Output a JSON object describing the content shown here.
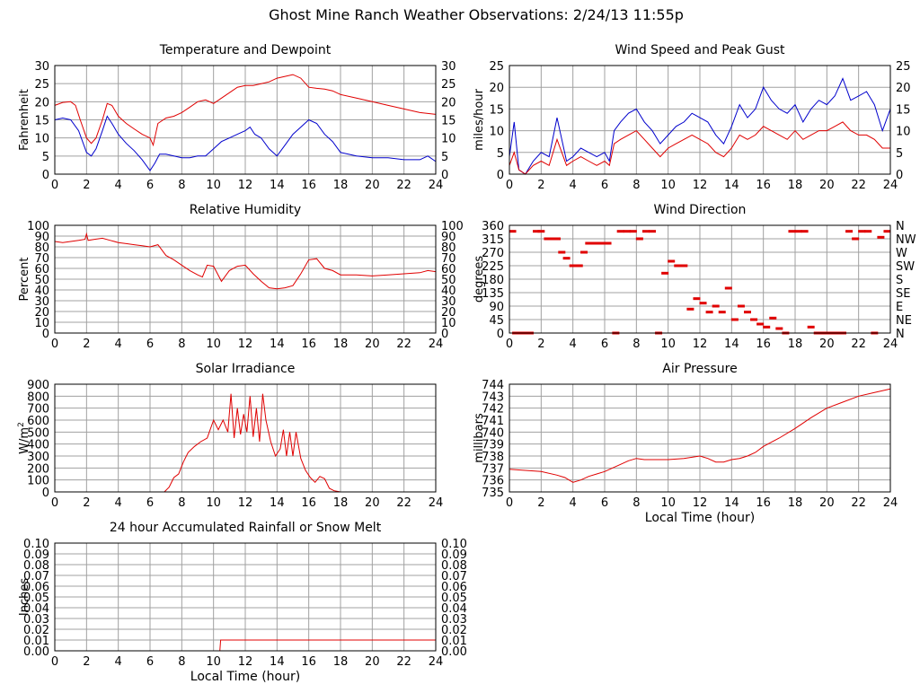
{
  "page": {
    "title": "Ghost Mine Ranch Weather Observations: 2/24/13 11:55p"
  },
  "colors": {
    "grid": "#a0a0a0",
    "frame": "#000000",
    "red": "#e00000",
    "blue": "#0000cc",
    "background": "#ffffff"
  },
  "chart_data": [
    {
      "id": "temperature",
      "type": "line",
      "title": "Temperature and Dewpoint",
      "ylabel": "Fahrenheit",
      "right_axis": true,
      "xlim": [
        0,
        24
      ],
      "ylim": [
        0,
        30
      ],
      "x_ticks": [
        0,
        2,
        4,
        6,
        8,
        10,
        12,
        14,
        16,
        18,
        20,
        22,
        24
      ],
      "y_ticks": [
        0,
        5,
        10,
        15,
        20,
        25,
        30
      ],
      "series": [
        {
          "color": "red",
          "x": [
            0,
            0.5,
            1,
            1.3,
            1.6,
            2,
            2.3,
            2.6,
            3,
            3.3,
            3.6,
            4,
            4.5,
            5,
            5.5,
            6,
            6.2,
            6.5,
            7,
            7.5,
            8,
            8.5,
            9,
            9.5,
            10,
            10.5,
            11,
            11.5,
            12,
            12.5,
            13,
            13.5,
            14,
            14.5,
            15,
            15.5,
            16,
            16.5,
            17,
            17.5,
            18,
            19,
            20,
            21,
            22,
            23,
            24
          ],
          "y": [
            19,
            19.8,
            20,
            19,
            15,
            10,
            8.5,
            10,
            15,
            19.5,
            19,
            16,
            14,
            12.5,
            11,
            10,
            8,
            14,
            15.5,
            16,
            17,
            18.5,
            20,
            20.5,
            19.5,
            21,
            22.5,
            24,
            24.5,
            24.5,
            25,
            25.5,
            26.5,
            27,
            27.5,
            26.5,
            24,
            23.7,
            23.5,
            23,
            22,
            21,
            20,
            19,
            18,
            17,
            16.5
          ]
        },
        {
          "color": "blue",
          "x": [
            0,
            0.5,
            1,
            1.5,
            2,
            2.3,
            2.6,
            3,
            3.3,
            3.6,
            4,
            4.5,
            5,
            5.5,
            6,
            6.3,
            6.6,
            7,
            7.5,
            8,
            8.5,
            9,
            9.5,
            10,
            10.5,
            11,
            11.5,
            12,
            12.3,
            12.6,
            13,
            13.5,
            14,
            14.5,
            15,
            15.5,
            16,
            16.5,
            17,
            17.5,
            18,
            18.5,
            19,
            20,
            21,
            22,
            23,
            23.5,
            24
          ],
          "y": [
            15,
            15.5,
            15,
            12,
            6,
            5,
            7,
            12,
            16,
            14,
            11,
            8.5,
            6.5,
            4,
            1,
            3,
            5.5,
            5.5,
            5,
            4.5,
            4.5,
            5,
            5,
            7,
            9,
            10,
            11,
            12,
            13,
            11,
            10,
            7,
            5,
            8,
            11,
            13,
            15,
            14,
            11,
            9,
            6,
            5.5,
            5,
            4.5,
            4.5,
            4,
            4,
            5,
            3.5
          ]
        }
      ]
    },
    {
      "id": "wind_speed",
      "type": "line",
      "title": "Wind Speed and Peak Gust",
      "ylabel": "miles/hour",
      "right_axis": true,
      "xlim": [
        0,
        24
      ],
      "ylim": [
        0,
        25
      ],
      "x_ticks": [
        0,
        2,
        4,
        6,
        8,
        10,
        12,
        14,
        16,
        18,
        20,
        22,
        24
      ],
      "y_ticks": [
        0,
        5,
        10,
        15,
        20,
        25
      ],
      "series": [
        {
          "color": "blue",
          "x": [
            0,
            0.3,
            0.6,
            1,
            1.5,
            2,
            2.5,
            3,
            3.3,
            3.6,
            4,
            4.5,
            5,
            5.5,
            6,
            6.3,
            6.6,
            7,
            7.5,
            8,
            8.5,
            9,
            9.5,
            10,
            10.5,
            11,
            11.5,
            12,
            12.5,
            13,
            13.5,
            14,
            14.5,
            15,
            15.5,
            16,
            16.5,
            17,
            17.5,
            18,
            18.5,
            19,
            19.5,
            20,
            20.5,
            21,
            21.5,
            22,
            22.5,
            23,
            23.5,
            24
          ],
          "y": [
            4,
            12,
            1,
            0,
            3,
            5,
            4,
            13,
            8,
            3,
            4,
            6,
            5,
            4,
            5,
            3,
            10,
            12,
            14,
            15,
            12,
            10,
            7,
            9,
            11,
            12,
            14,
            13,
            12,
            9,
            7,
            11,
            16,
            13,
            15,
            20,
            17,
            15,
            14,
            16,
            12,
            15,
            17,
            16,
            18,
            22,
            17,
            18,
            19,
            16,
            10,
            15
          ]
        },
        {
          "color": "red",
          "x": [
            0,
            0.3,
            0.6,
            1,
            1.5,
            2,
            2.5,
            3,
            3.3,
            3.6,
            4,
            4.5,
            5,
            5.5,
            6,
            6.3,
            6.6,
            7,
            7.5,
            8,
            8.5,
            9,
            9.5,
            10,
            10.5,
            11,
            11.5,
            12,
            12.5,
            13,
            13.5,
            14,
            14.5,
            15,
            15.5,
            16,
            16.5,
            17,
            17.5,
            18,
            18.5,
            19,
            19.5,
            20,
            20.5,
            21,
            21.5,
            22,
            22.5,
            23,
            23.5,
            24
          ],
          "y": [
            2,
            5,
            1,
            0,
            2,
            3,
            2,
            8,
            5,
            2,
            3,
            4,
            3,
            2,
            3,
            2,
            7,
            8,
            9,
            10,
            8,
            6,
            4,
            6,
            7,
            8,
            9,
            8,
            7,
            5,
            4,
            6,
            9,
            8,
            9,
            11,
            10,
            9,
            8,
            10,
            8,
            9,
            10,
            10,
            11,
            12,
            10,
            9,
            9,
            8,
            6,
            6
          ]
        }
      ]
    },
    {
      "id": "humidity",
      "type": "line",
      "title": "Relative Humidity",
      "ylabel": "Percent",
      "right_axis": true,
      "xlim": [
        0,
        24
      ],
      "ylim": [
        0,
        100
      ],
      "x_ticks": [
        0,
        2,
        4,
        6,
        8,
        10,
        12,
        14,
        16,
        18,
        20,
        22,
        24
      ],
      "y_ticks": [
        0,
        10,
        20,
        30,
        40,
        50,
        60,
        70,
        80,
        90,
        100
      ],
      "series": [
        {
          "color": "red",
          "x": [
            0,
            0.5,
            1,
            1.5,
            1.9,
            2,
            2.1,
            2.5,
            3,
            3.5,
            4,
            4.5,
            5,
            5.5,
            6,
            6.5,
            7,
            7.5,
            8,
            8.5,
            9,
            9.3,
            9.6,
            10,
            10.5,
            11,
            11.5,
            12,
            12.5,
            13,
            13.5,
            14,
            14.5,
            15,
            15.5,
            16,
            16.5,
            17,
            17.5,
            18,
            19,
            20,
            21,
            22,
            23,
            23.5,
            24
          ],
          "y": [
            85,
            84,
            85,
            86,
            87,
            92,
            86,
            87,
            88,
            86,
            84,
            83,
            82,
            81,
            80,
            82,
            72,
            68,
            63,
            58,
            54,
            52,
            63,
            62,
            48,
            58,
            62,
            63,
            55,
            48,
            42,
            41,
            42,
            44,
            55,
            68,
            69,
            60,
            58,
            54,
            54,
            53,
            54,
            55,
            56,
            58,
            57
          ]
        }
      ]
    },
    {
      "id": "wind_direction",
      "type": "scatter",
      "title": "Wind Direction",
      "ylabel": "degrees",
      "right_axis": false,
      "xlim": [
        0,
        24
      ],
      "ylim": [
        0,
        360
      ],
      "x_ticks": [
        0,
        2,
        4,
        6,
        8,
        10,
        12,
        14,
        16,
        18,
        20,
        22,
        24
      ],
      "y_ticks": [
        0,
        45,
        90,
        135,
        180,
        225,
        270,
        315,
        360
      ],
      "right_tick_labels": [
        "N",
        "NE",
        "E",
        "SE",
        "S",
        "SW",
        "W",
        "NW",
        "N"
      ],
      "series": [
        {
          "color": "red",
          "x": [
            0.2,
            0.4,
            0.7,
            1.0,
            1.3,
            1.7,
            2.0,
            2.4,
            2.7,
            3.0,
            3.3,
            3.6,
            4.0,
            4.4,
            4.7,
            5.0,
            5.4,
            5.8,
            6.2,
            6.7,
            7.0,
            7.4,
            7.8,
            8.2,
            8.6,
            9.0,
            9.4,
            9.8,
            10.2,
            10.6,
            11.0,
            11.4,
            11.8,
            12.2,
            12.6,
            13.0,
            13.4,
            13.8,
            14.2,
            14.6,
            15.0,
            15.4,
            15.8,
            16.2,
            16.6,
            17.0,
            17.4,
            17.8,
            18.2,
            18.6,
            19.0,
            19.4,
            19.8,
            20.2,
            20.6,
            21.0,
            21.4,
            21.8,
            22.2,
            22.6,
            23.0,
            23.4,
            23.8
          ],
          "y": [
            340,
            0,
            0,
            0,
            0,
            340,
            340,
            315,
            315,
            315,
            270,
            250,
            225,
            225,
            270,
            300,
            300,
            300,
            300,
            0,
            340,
            340,
            340,
            315,
            340,
            340,
            0,
            200,
            240,
            225,
            225,
            80,
            115,
            100,
            70,
            90,
            70,
            150,
            45,
            90,
            70,
            45,
            30,
            20,
            50,
            15,
            0,
            340,
            340,
            340,
            20,
            0,
            0,
            0,
            0,
            0,
            340,
            315,
            340,
            340,
            0,
            320,
            340
          ]
        }
      ]
    },
    {
      "id": "solar",
      "type": "line",
      "title": "Solar Irradiance",
      "ylabel": "W/m2",
      "right_axis": false,
      "xlim": [
        0,
        24
      ],
      "ylim": [
        0,
        900
      ],
      "x_ticks": [
        0,
        2,
        4,
        6,
        8,
        10,
        12,
        14,
        16,
        18,
        20,
        22,
        24
      ],
      "y_ticks": [
        0,
        100,
        200,
        300,
        400,
        500,
        600,
        700,
        800,
        900
      ],
      "series": [
        {
          "color": "red",
          "x": [
            0,
            6.9,
            7.2,
            7.5,
            7.8,
            8.1,
            8.4,
            8.8,
            9.2,
            9.6,
            10,
            10.3,
            10.6,
            10.9,
            11.1,
            11.3,
            11.5,
            11.7,
            11.9,
            12.1,
            12.3,
            12.5,
            12.7,
            12.9,
            13.1,
            13.3,
            13.6,
            13.9,
            14.2,
            14.4,
            14.6,
            14.8,
            15.0,
            15.2,
            15.5,
            15.8,
            16.1,
            16.4,
            16.7,
            17.0,
            17.3,
            17.6,
            18.0,
            24
          ],
          "y": [
            0,
            0,
            40,
            120,
            150,
            250,
            330,
            380,
            420,
            450,
            600,
            520,
            600,
            500,
            820,
            450,
            700,
            480,
            650,
            500,
            800,
            460,
            700,
            420,
            820,
            600,
            420,
            300,
            360,
            520,
            300,
            500,
            300,
            500,
            280,
            180,
            120,
            80,
            130,
            110,
            30,
            10,
            0,
            0
          ]
        }
      ]
    },
    {
      "id": "pressure",
      "type": "line",
      "title": "Air Pressure",
      "ylabel": "millibars",
      "xlabel": "Local Time (hour)",
      "right_axis": false,
      "xlim": [
        0,
        24
      ],
      "ylim": [
        735,
        744
      ],
      "x_ticks": [
        0,
        2,
        4,
        6,
        8,
        10,
        12,
        14,
        16,
        18,
        20,
        22,
        24
      ],
      "y_ticks": [
        735,
        736,
        737,
        738,
        739,
        740,
        741,
        742,
        743,
        744
      ],
      "series": [
        {
          "color": "red",
          "x": [
            0,
            1,
            2,
            3,
            3.5,
            4,
            4.5,
            5,
            5.5,
            6,
            6.5,
            7,
            7.5,
            8,
            8.5,
            9,
            10,
            11,
            12,
            12.5,
            13,
            13.5,
            14,
            14.5,
            15,
            15.5,
            16,
            17,
            18,
            19,
            20,
            21,
            22,
            23,
            24
          ],
          "y": [
            736.9,
            736.8,
            736.7,
            736.4,
            736.2,
            735.8,
            736.0,
            736.3,
            736.5,
            736.7,
            737.0,
            737.3,
            737.6,
            737.8,
            737.7,
            737.7,
            737.7,
            737.8,
            738.0,
            737.8,
            737.5,
            737.5,
            737.7,
            737.8,
            738.0,
            738.3,
            738.8,
            739.5,
            740.3,
            741.2,
            742.0,
            742.5,
            743.0,
            743.3,
            743.6
          ]
        }
      ]
    },
    {
      "id": "rainfall",
      "type": "line",
      "title": "24 hour Accumulated Rainfall or Snow Melt",
      "ylabel": "Inches",
      "xlabel": "Local Time (hour)",
      "right_axis": true,
      "xlim": [
        0,
        24
      ],
      "ylim": [
        0,
        0.1
      ],
      "x_ticks": [
        0,
        2,
        4,
        6,
        8,
        10,
        12,
        14,
        16,
        18,
        20,
        22,
        24
      ],
      "y_ticks": [
        0.0,
        0.01,
        0.02,
        0.03,
        0.04,
        0.05,
        0.06,
        0.07,
        0.08,
        0.09,
        0.1
      ],
      "series": [
        {
          "color": "red",
          "x": [
            0,
            10.4,
            10.45,
            24
          ],
          "y": [
            0,
            0,
            0.01,
            0.01
          ]
        }
      ]
    }
  ]
}
